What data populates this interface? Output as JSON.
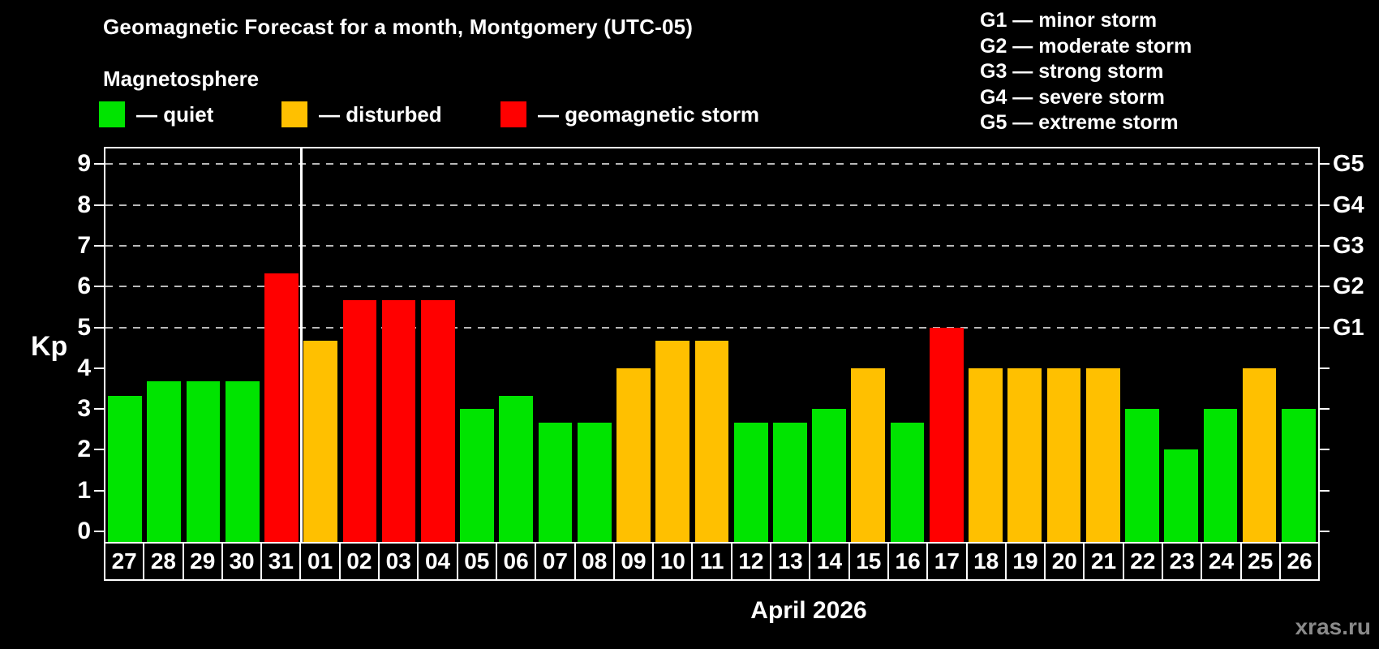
{
  "title": "Geomagnetic Forecast for a month, Montgomery (UTC-05)",
  "subtitle": "Magnetosphere",
  "legend": [
    {
      "label": "— quiet",
      "status": "quiet"
    },
    {
      "label": "— disturbed",
      "status": "disturbed"
    },
    {
      "label": "— geomagnetic storm",
      "status": "storm"
    }
  ],
  "g_legend": [
    "G1 — minor storm",
    "G2 — moderate storm",
    "G3 — strong storm",
    "G4 — severe storm",
    "G5 — extreme storm"
  ],
  "xlabel": "April 2026",
  "watermark": "xras.ru",
  "chart_data": {
    "type": "bar",
    "title": "Geomagnetic Forecast for a month, Montgomery (UTC-05)",
    "ylabel": "Kp",
    "xlabel": "April 2026",
    "ylim": [
      0,
      9.4
    ],
    "grid": "dashed horizontal at Kp 5-9",
    "categories": [
      "27",
      "28",
      "29",
      "30",
      "31",
      "01",
      "02",
      "03",
      "04",
      "05",
      "06",
      "07",
      "08",
      "09",
      "10",
      "11",
      "12",
      "13",
      "14",
      "15",
      "16",
      "17",
      "18",
      "19",
      "20",
      "21",
      "22",
      "23",
      "24",
      "25",
      "26"
    ],
    "values": [
      3.33,
      3.67,
      3.67,
      3.67,
      6.33,
      4.67,
      5.67,
      5.67,
      5.67,
      3.0,
      3.33,
      2.67,
      2.67,
      4.0,
      4.67,
      4.67,
      2.67,
      2.67,
      3.0,
      4.0,
      2.67,
      5.0,
      4.0,
      4.0,
      4.0,
      4.0,
      3.0,
      2.0,
      3.0,
      4.0,
      3.0
    ],
    "statuses": [
      "quiet",
      "quiet",
      "quiet",
      "quiet",
      "storm",
      "disturbed",
      "storm",
      "storm",
      "storm",
      "quiet",
      "quiet",
      "quiet",
      "quiet",
      "disturbed",
      "disturbed",
      "disturbed",
      "quiet",
      "quiet",
      "quiet",
      "disturbed",
      "quiet",
      "storm",
      "disturbed",
      "disturbed",
      "disturbed",
      "disturbed",
      "quiet",
      "quiet",
      "quiet",
      "disturbed",
      "quiet"
    ],
    "status_colors": {
      "quiet": "#00e400",
      "disturbed": "#ffc000",
      "storm": "#ff0000"
    },
    "yticks": [
      "0",
      "1",
      "2",
      "3",
      "4",
      "5",
      "6",
      "7",
      "8",
      "9"
    ],
    "grid_levels": [
      5,
      6,
      7,
      8,
      9
    ],
    "g_axis": [
      {
        "kp": 5,
        "label": "G1"
      },
      {
        "kp": 6,
        "label": "G2"
      },
      {
        "kp": 7,
        "label": "G3"
      },
      {
        "kp": 8,
        "label": "G4"
      },
      {
        "kp": 9,
        "label": "G5"
      }
    ],
    "month_separator_index": 5,
    "legend_position": "top-left",
    "background": "#000000"
  }
}
